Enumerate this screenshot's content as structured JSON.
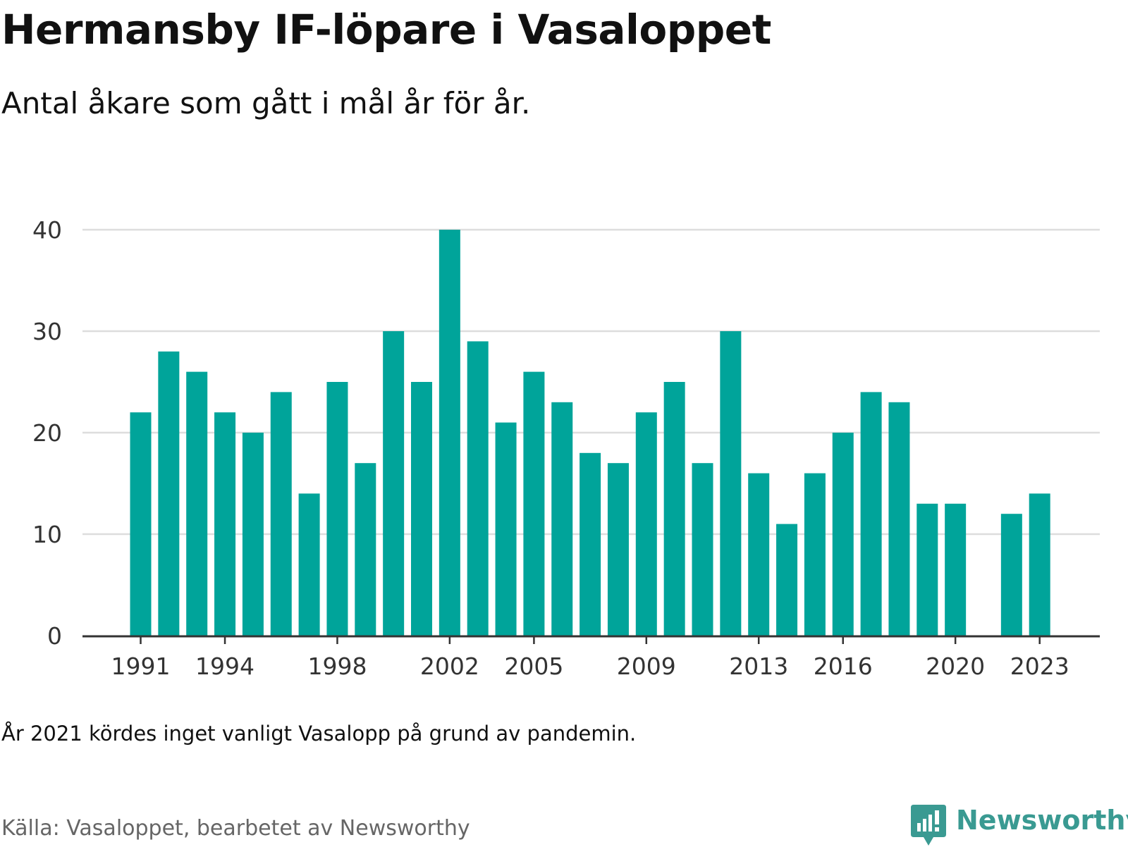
{
  "header": {
    "title": "Hermansby IF-löpare i Vasaloppet",
    "subtitle": "Antal åkare som gått i mål år för år."
  },
  "footer": {
    "note": "År 2021 kördes inget vanligt Vasalopp på grund av pandemin.",
    "source": "Källa: Vasaloppet, bearbetet av Newsworthy",
    "brand": "Newsworthy",
    "brand_icon": "bar-chart-speech-bubble-icon"
  },
  "colors": {
    "bar": "#00a49a",
    "brand": "#3a9a92",
    "grid": "#dddddd",
    "axis": "#333333",
    "tick_text": "#333333"
  },
  "chart_data": {
    "type": "bar",
    "title": "Hermansby IF-löpare i Vasaloppet",
    "subtitle": "Antal åkare som gått i mål år för år.",
    "xlabel": "",
    "ylabel": "",
    "ylim": [
      0,
      40
    ],
    "yticks": [
      0,
      10,
      20,
      30,
      40
    ],
    "xticks": [
      1991,
      1994,
      1998,
      2002,
      2005,
      2009,
      2013,
      2016,
      2020,
      2023
    ],
    "grid": "horizontal",
    "legend": "none",
    "categories": [
      1991,
      1992,
      1993,
      1994,
      1995,
      1996,
      1997,
      1998,
      1999,
      2000,
      2001,
      2002,
      2003,
      2004,
      2005,
      2006,
      2007,
      2008,
      2009,
      2010,
      2011,
      2012,
      2013,
      2014,
      2015,
      2016,
      2017,
      2018,
      2019,
      2020,
      2021,
      2022,
      2023
    ],
    "values": [
      22,
      28,
      26,
      22,
      20,
      24,
      14,
      25,
      17,
      30,
      25,
      40,
      29,
      21,
      26,
      23,
      18,
      17,
      22,
      25,
      17,
      30,
      16,
      11,
      16,
      20,
      24,
      23,
      13,
      13,
      null,
      12,
      14
    ]
  }
}
